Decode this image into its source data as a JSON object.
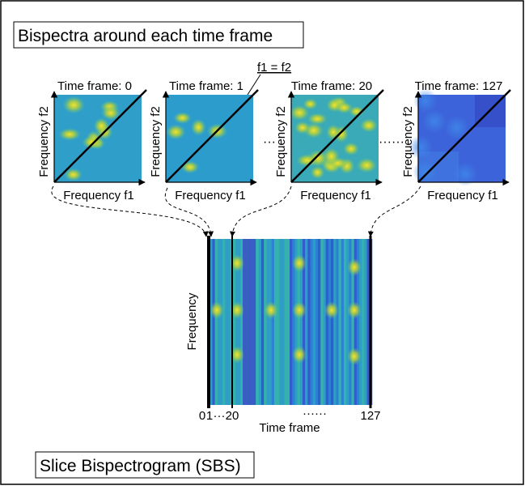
{
  "title": "Bispectra around each time frame",
  "diagonal_label": "f1 = f2",
  "panels": [
    {
      "title": "Time frame: 0",
      "x_label": "Frequency f1",
      "y_label": "Frequency f2"
    },
    {
      "title": "Time frame: 1",
      "x_label": "Frequency f1",
      "y_label": "Frequency f2"
    },
    {
      "title": "Time frame: 20",
      "x_label": "Frequency f1",
      "y_label": "Frequency f2"
    },
    {
      "title": "Time frame: 127",
      "x_label": "Frequency f1",
      "y_label": "Frequency f2"
    }
  ],
  "panel_ellipses": [
    "···",
    "······"
  ],
  "sbs": {
    "y_label": "Frequency",
    "x_label": "Time frame",
    "ticks": [
      "0",
      "1",
      "···",
      "20",
      "······",
      "127"
    ]
  },
  "caption": "Slice Bispectrogram (SBS)"
}
